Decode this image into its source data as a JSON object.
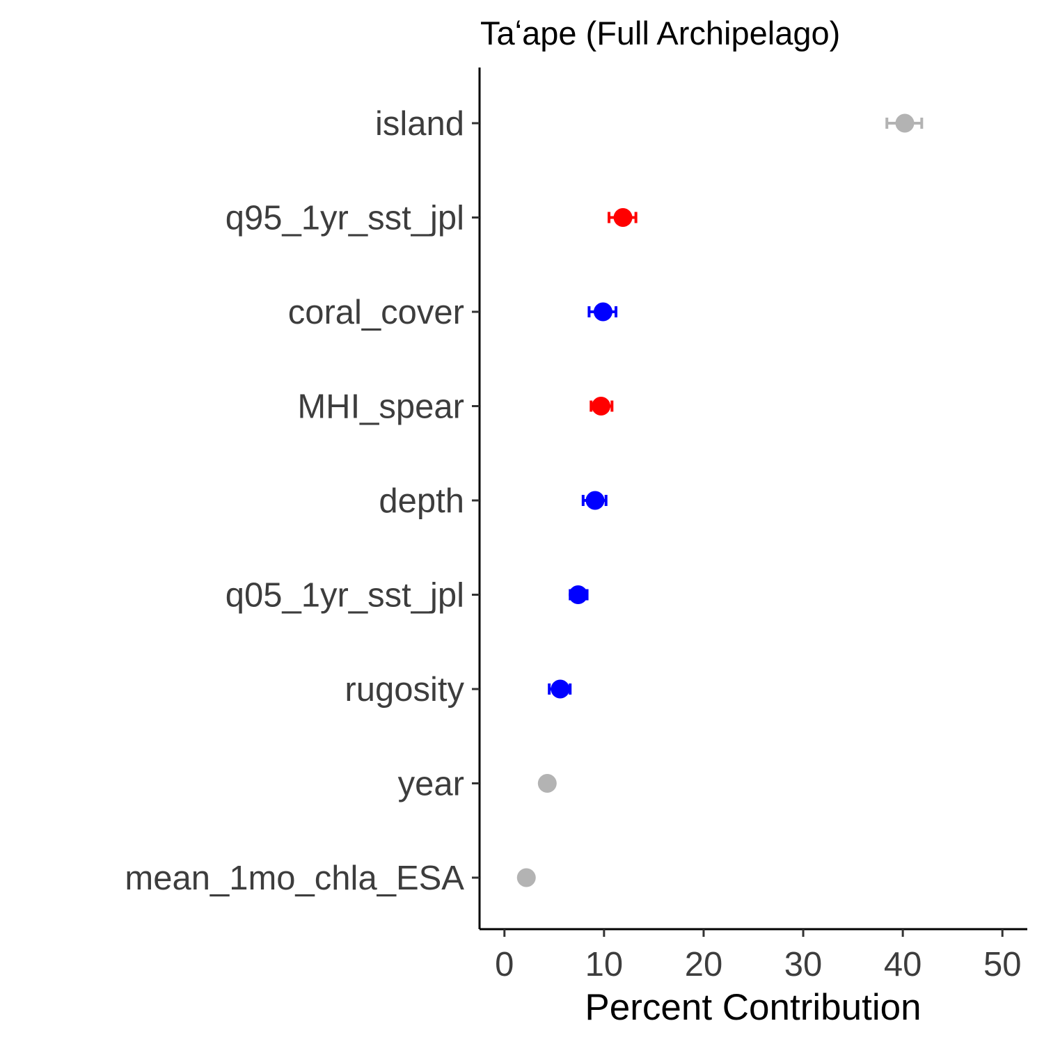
{
  "chart_data": {
    "type": "scatter",
    "title": "Taʻape (Full Archipelago)",
    "xlabel": "Percent Contribution",
    "ylabel": "",
    "xlim": [
      -2.5,
      52.5
    ],
    "x_ticks": [
      0,
      10,
      20,
      30,
      40,
      50
    ],
    "grid": false,
    "legend": "none",
    "colors": {
      "gray": "#b3b3b3",
      "red": "#ff0000",
      "blue": "#0000ff"
    },
    "points": [
      {
        "label": "island",
        "value": 40.2,
        "error_low": 38.4,
        "error_high": 41.9,
        "color": "gray"
      },
      {
        "label": "q95_1yr_sst_jpl",
        "value": 11.9,
        "error_low": 10.5,
        "error_high": 13.2,
        "color": "red"
      },
      {
        "label": "coral_cover",
        "value": 9.9,
        "error_low": 8.5,
        "error_high": 11.2,
        "color": "blue"
      },
      {
        "label": "MHI_spear",
        "value": 9.7,
        "error_low": 8.7,
        "error_high": 10.8,
        "color": "red"
      },
      {
        "label": "depth",
        "value": 9.1,
        "error_low": 7.9,
        "error_high": 10.2,
        "color": "blue"
      },
      {
        "label": "q05_1yr_sst_jpl",
        "value": 7.4,
        "error_low": 6.6,
        "error_high": 8.3,
        "color": "blue"
      },
      {
        "label": "rugosity",
        "value": 5.6,
        "error_low": 4.5,
        "error_high": 6.6,
        "color": "blue"
      },
      {
        "label": "year",
        "value": 4.3,
        "error_low": 4.3,
        "error_high": 4.3,
        "color": "gray"
      },
      {
        "label": "mean_1mo_chla_ESA",
        "value": 2.2,
        "error_low": 2.2,
        "error_high": 2.2,
        "color": "gray"
      }
    ]
  }
}
